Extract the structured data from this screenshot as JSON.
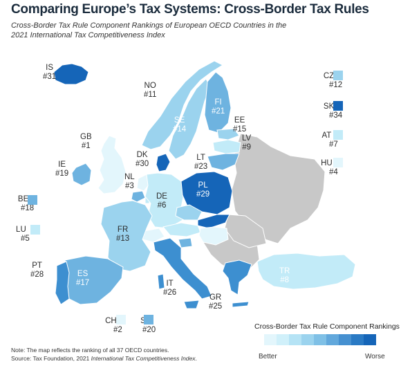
{
  "title": "Comparing Europe’s Tax Systems: Cross-Border Tax Rules",
  "subtitle": "Cross-Border Tax Rule Component Rankings of European OECD Countries in the 2021 International Tax Competitiveness Index",
  "colors": {
    "r1": "#e3f6fc",
    "r2": "#c2ebf8",
    "r3": "#9bd3ee",
    "r4": "#6eb3e0",
    "r5": "#3d8fd0",
    "r6": "#1565b8",
    "nonoecd": "#c8c8c8",
    "water": "#ffffff",
    "border": "#ffffff"
  },
  "countries": [
    {
      "code": "IS",
      "rank": "#31",
      "tone": "r6"
    },
    {
      "code": "NO",
      "rank": "#11",
      "tone": "r3"
    },
    {
      "code": "SE",
      "rank": "#14",
      "tone": "r3"
    },
    {
      "code": "FI",
      "rank": "#21",
      "tone": "r4"
    },
    {
      "code": "EE",
      "rank": "#15",
      "tone": "r3"
    },
    {
      "code": "LV",
      "rank": "#9",
      "tone": "r2"
    },
    {
      "code": "LT",
      "rank": "#23",
      "tone": "r4"
    },
    {
      "code": "GB",
      "rank": "#1",
      "tone": "r1"
    },
    {
      "code": "IE",
      "rank": "#19",
      "tone": "r4"
    },
    {
      "code": "DK",
      "rank": "#30",
      "tone": "r6"
    },
    {
      "code": "NL",
      "rank": "#3",
      "tone": "r1"
    },
    {
      "code": "DE",
      "rank": "#6",
      "tone": "r2"
    },
    {
      "code": "PL",
      "rank": "#29",
      "tone": "r6"
    },
    {
      "code": "BE",
      "rank": "#18",
      "tone": "r4"
    },
    {
      "code": "LU",
      "rank": "#5",
      "tone": "r2"
    },
    {
      "code": "FR",
      "rank": "#13",
      "tone": "r3"
    },
    {
      "code": "PT",
      "rank": "#28",
      "tone": "r5"
    },
    {
      "code": "ES",
      "rank": "#17",
      "tone": "r4"
    },
    {
      "code": "IT",
      "rank": "#26",
      "tone": "r5"
    },
    {
      "code": "GR",
      "rank": "#25",
      "tone": "r5"
    },
    {
      "code": "TR",
      "rank": "#8",
      "tone": "r2"
    },
    {
      "code": "CZ",
      "rank": "#12",
      "tone": "r3"
    },
    {
      "code": "SK",
      "rank": "#34",
      "tone": "r6"
    },
    {
      "code": "AT",
      "rank": "#7",
      "tone": "r2"
    },
    {
      "code": "HU",
      "rank": "#4",
      "tone": "r1"
    },
    {
      "code": "CH",
      "rank": "#2",
      "tone": "r1"
    },
    {
      "code": "SI",
      "rank": "#20",
      "tone": "r4"
    }
  ],
  "legend": {
    "title": "Cross-Border Tax Rule Component Rankings",
    "better": "Better",
    "worse": "Worse",
    "scale": [
      "#e3f6fc",
      "#d0f0fa",
      "#b5e3f5",
      "#9bd3ee",
      "#7fc0e6",
      "#62a8dc",
      "#4690d0",
      "#2a7ac4",
      "#1565b8"
    ]
  },
  "note": "Note: The map reflects the ranking of all 37 OECD countries.",
  "source_prefix": "Source: Tax Foundation, 2021 ",
  "source_title": "International Tax Competitiveness Index",
  "source_suffix": "."
}
